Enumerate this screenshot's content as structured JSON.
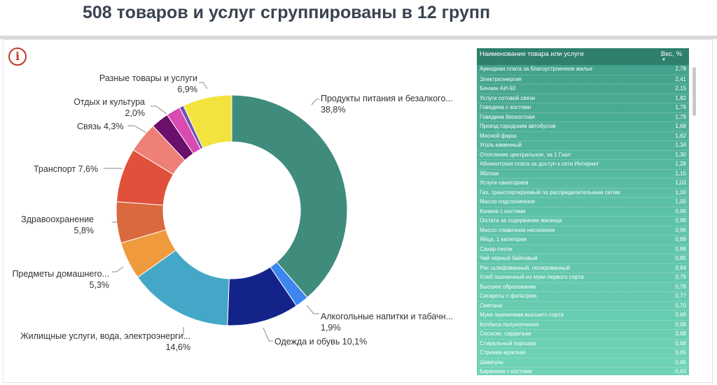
{
  "header": {
    "title": "508 товаров и услуг сгруппированы в 12 групп"
  },
  "info_icon": {
    "symbol": "i"
  },
  "chart_data": {
    "type": "pie",
    "donut": true,
    "title": "",
    "slices": [
      {
        "name": "Продукты питания и безалкого...",
        "value": 38.8,
        "label": "38,8%",
        "color": "#3f8c7d"
      },
      {
        "name": "Алкогольные напитки и табачн...",
        "value": 1.9,
        "label": "1,9%",
        "color": "#3d86f0"
      },
      {
        "name": "Одежда и обувь",
        "value": 10.1,
        "label": "10,1%",
        "color": "#13238a"
      },
      {
        "name": "Жилищные услуги, вода, электроэнерги...",
        "value": 14.6,
        "label": "14,6%",
        "color": "#45a7c7"
      },
      {
        "name": "Предметы домашнего...",
        "value": 5.3,
        "label": "5,3%",
        "color": "#ef9a3c"
      },
      {
        "name": "Здравоохранение",
        "value": 5.8,
        "label": "5,8%",
        "color": "#d9693e"
      },
      {
        "name": "Транспорт",
        "value": 7.6,
        "label": "7,6%",
        "color": "#e0503a"
      },
      {
        "name": "Связь",
        "value": 4.3,
        "label": "4,3%",
        "color": "#ef8077"
      },
      {
        "name": "",
        "value": 2.5,
        "label": "",
        "color": "#6a0f6a"
      },
      {
        "name": "Отдых и культура",
        "value": 2.0,
        "label": "2,0%",
        "color": "#d94bb0"
      },
      {
        "name": "",
        "value": 0.6,
        "label": "",
        "color": "#6f52b7"
      },
      {
        "name": "Разные товары и услуги",
        "value": 6.9,
        "label": "6,9%",
        "color": "#f2e33e"
      }
    ]
  },
  "labels": {
    "food": {
      "name": "Продукты питания и безалкого...",
      "value": "38,8%"
    },
    "alcohol": {
      "name": "Алкогольные напитки и табачн...",
      "value": "1,9%"
    },
    "clothing": {
      "text": "Одежда и обувь 10,1%"
    },
    "housing": {
      "name": "Жилищные услуги, вода, электроэнерги...",
      "value": "14,6%"
    },
    "household": {
      "name": "Предметы домашнего...",
      "value": "5,3%"
    },
    "health": {
      "name": "Здравоохранение",
      "value": "5,8%"
    },
    "transport": {
      "text": "Транспорт 7,6%"
    },
    "communication": {
      "text": "Связь 4,3%"
    },
    "recreation": {
      "name": "Отдых и культура",
      "value": "2,0%"
    },
    "misc": {
      "name": "Разные товары и услуги",
      "value": "6,9%"
    }
  },
  "table": {
    "col_name": "Наименование товара или услуги",
    "col_weight": "Вес, %",
    "sort_indicator": "▼",
    "rows": [
      {
        "name": "Арендная плата за благоустроенное жилье",
        "weight": "2,78"
      },
      {
        "name": "Электроэнергия",
        "weight": "2,41"
      },
      {
        "name": "Бензин АИ-92",
        "weight": "2,15"
      },
      {
        "name": "Услуги сотовой связи",
        "weight": "1,82"
      },
      {
        "name": "Говядина с костями",
        "weight": "1,79"
      },
      {
        "name": "Говядина бескостная",
        "weight": "1,79"
      },
      {
        "name": "Проезд городским автобусом",
        "weight": "1,68"
      },
      {
        "name": "Мясной фарш",
        "weight": "1,62"
      },
      {
        "name": "Уголь каменный",
        "weight": "1,34"
      },
      {
        "name": "Отопление центральное, за 1 Гкал",
        "weight": "1,30"
      },
      {
        "name": "Абонентская плата за доступ к сети Интернет",
        "weight": "1,28"
      },
      {
        "name": "Яблоки",
        "weight": "1,15"
      },
      {
        "name": "Услуги санаториев",
        "weight": "1,03"
      },
      {
        "name": "Газ, транспортируемый по распределительным сетям",
        "weight": "1,00"
      },
      {
        "name": "Масло подсолнечное",
        "weight": "1,00"
      },
      {
        "name": "Конина с костями",
        "weight": "0,99"
      },
      {
        "name": "Оплата за содержание жилища",
        "weight": "0,98"
      },
      {
        "name": "Масло сливочное несоленое",
        "weight": "0,96"
      },
      {
        "name": "Яйца, 1 категории",
        "weight": "0,89"
      },
      {
        "name": "Сахар-песок",
        "weight": "0,88"
      },
      {
        "name": "Чай черный байховый",
        "weight": "0,85"
      },
      {
        "name": "Рис шлифованный, полированный",
        "weight": "0,84"
      },
      {
        "name": "Хлеб пшеничный из муки первого сорта",
        "weight": "0,79"
      },
      {
        "name": "Высшее образование",
        "weight": "0,78"
      },
      {
        "name": "Сигареты с фильтром",
        "weight": "0,77"
      },
      {
        "name": "Сметана",
        "weight": "0,70"
      },
      {
        "name": "Мука пшеничная высшего сорта",
        "weight": "0,69"
      },
      {
        "name": "Колбаса полукопченая",
        "weight": "0,68"
      },
      {
        "name": "Сосиски, сардельки",
        "weight": "0,68"
      },
      {
        "name": "Стиральный порошок",
        "weight": "0,68"
      },
      {
        "name": "Стрижка мужская",
        "weight": "0,65"
      },
      {
        "name": "Шампунь",
        "weight": "0,65"
      },
      {
        "name": "Баранина с костями",
        "weight": "0,63"
      }
    ]
  }
}
